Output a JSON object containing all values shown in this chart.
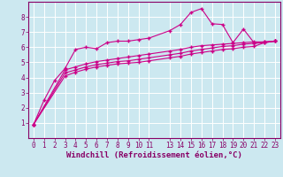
{
  "background_color": "#cce8f0",
  "grid_color": "#ffffff",
  "line_color": "#cc0088",
  "marker": "+",
  "marker_size": 3.5,
  "marker_linewidth": 1.0,
  "linewidth": 0.8,
  "xlabel": "Windchill (Refroidissement éolien,°C)",
  "xlabel_fontsize": 6.5,
  "tick_fontsize": 5.5,
  "tick_color": "#880066",
  "axis_color": "#880066",
  "xlim": [
    -0.5,
    23.5
  ],
  "ylim": [
    0,
    9
  ],
  "xticks": [
    0,
    1,
    2,
    3,
    4,
    5,
    6,
    7,
    8,
    9,
    10,
    11,
    13,
    14,
    15,
    16,
    17,
    18,
    19,
    20,
    21,
    22,
    23
  ],
  "yticks": [
    1,
    2,
    3,
    4,
    5,
    6,
    7,
    8
  ],
  "series": [
    {
      "x": [
        0,
        1,
        2,
        3,
        4,
        5,
        6,
        7,
        8,
        9,
        10,
        11,
        13,
        14,
        15,
        16,
        17,
        18,
        19,
        20,
        21,
        22,
        23
      ],
      "y": [
        0.9,
        2.5,
        3.8,
        4.6,
        5.85,
        6.0,
        5.9,
        6.3,
        6.4,
        6.4,
        6.5,
        6.6,
        7.1,
        7.5,
        8.3,
        8.55,
        7.55,
        7.5,
        6.3,
        7.2,
        6.3,
        6.35,
        6.4
      ]
    },
    {
      "x": [
        0,
        3,
        4,
        5,
        6,
        7,
        8,
        9,
        10,
        11,
        13,
        14,
        15,
        16,
        17,
        18,
        19,
        20,
        21,
        22,
        23
      ],
      "y": [
        0.9,
        4.5,
        4.7,
        4.9,
        5.05,
        5.15,
        5.25,
        5.35,
        5.45,
        5.55,
        5.75,
        5.85,
        6.0,
        6.1,
        6.15,
        6.2,
        6.25,
        6.3,
        6.35,
        6.35,
        6.4
      ]
    },
    {
      "x": [
        0,
        3,
        4,
        5,
        6,
        7,
        8,
        9,
        10,
        11,
        13,
        14,
        15,
        16,
        17,
        18,
        19,
        20,
        21,
        22,
        23
      ],
      "y": [
        0.9,
        4.3,
        4.5,
        4.7,
        4.85,
        4.95,
        5.05,
        5.1,
        5.2,
        5.3,
        5.5,
        5.6,
        5.75,
        5.85,
        5.95,
        6.05,
        6.1,
        6.2,
        6.25,
        6.3,
        6.4
      ]
    },
    {
      "x": [
        0,
        3,
        4,
        5,
        6,
        7,
        8,
        9,
        10,
        11,
        13,
        14,
        15,
        16,
        17,
        18,
        19,
        20,
        21,
        22,
        23
      ],
      "y": [
        0.9,
        4.1,
        4.35,
        4.55,
        4.7,
        4.8,
        4.9,
        4.95,
        5.0,
        5.1,
        5.3,
        5.4,
        5.55,
        5.65,
        5.75,
        5.85,
        5.9,
        6.0,
        6.05,
        6.3,
        6.4
      ]
    }
  ]
}
